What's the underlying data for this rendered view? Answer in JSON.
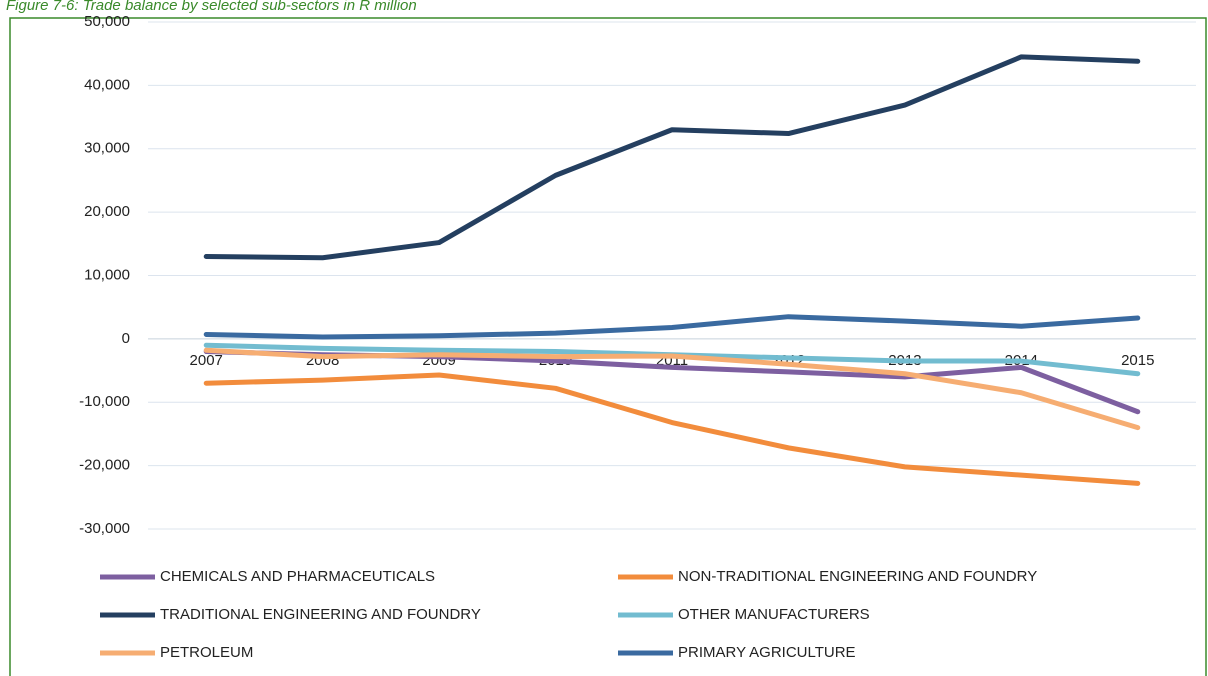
{
  "chart_data": {
    "type": "line",
    "title": "Figure 7-6: Trade balance by selected sub-sectors in R million",
    "categories": [
      "2007",
      "2008",
      "2009",
      "2010",
      "2011",
      "2012",
      "2013",
      "2014",
      "2015"
    ],
    "series": [
      {
        "name": "CHEMICALS AND PHARMACEUTICALS",
        "color": "#7d5fa0",
        "values": [
          -2000,
          -2500,
          -2800,
          -3500,
          -4500,
          -5200,
          -6000,
          -4500,
          -11500
        ]
      },
      {
        "name": "NON-TRADITIONAL ENGINEERING AND FOUNDRY",
        "color": "#f28c3c",
        "values": [
          -7000,
          -6500,
          -5700,
          -7800,
          -13200,
          -17200,
          -20200,
          -21500,
          -22800
        ]
      },
      {
        "name": "TRADITIONAL ENGINEERING AND FOUNDRY",
        "color": "#243f60",
        "values": [
          13000,
          12800,
          15200,
          25800,
          33000,
          32400,
          36900,
          44500,
          43800
        ]
      },
      {
        "name": "OTHER MANUFACTURERS",
        "color": "#72bcd0",
        "values": [
          -1000,
          -1500,
          -1800,
          -2000,
          -2500,
          -3000,
          -3500,
          -3500,
          -5500
        ]
      },
      {
        "name": "PETROLEUM",
        "color": "#f6ad72",
        "values": [
          -1800,
          -2800,
          -2500,
          -2800,
          -2700,
          -4000,
          -5500,
          -8500,
          -14000
        ]
      },
      {
        "name": "PRIMARY AGRICULTURE",
        "color": "#3a6aa0",
        "values": [
          700,
          300,
          500,
          900,
          1800,
          3500,
          2800,
          2000,
          3300
        ]
      }
    ],
    "ylim": [
      -30000,
      50000
    ],
    "yticks": [
      {
        "value": -30000,
        "label": "-30,000"
      },
      {
        "value": -20000,
        "label": "-20,000"
      },
      {
        "value": -10000,
        "label": "-10,000"
      },
      0,
      {
        "value": 10000,
        "label": "10,000"
      },
      {
        "value": 20000,
        "label": "20,000"
      },
      {
        "value": 30000,
        "label": "30,000"
      },
      {
        "value": 40000,
        "label": "40,000"
      },
      {
        "value": 50000,
        "label": "50,000"
      }
    ],
    "grid": true
  }
}
